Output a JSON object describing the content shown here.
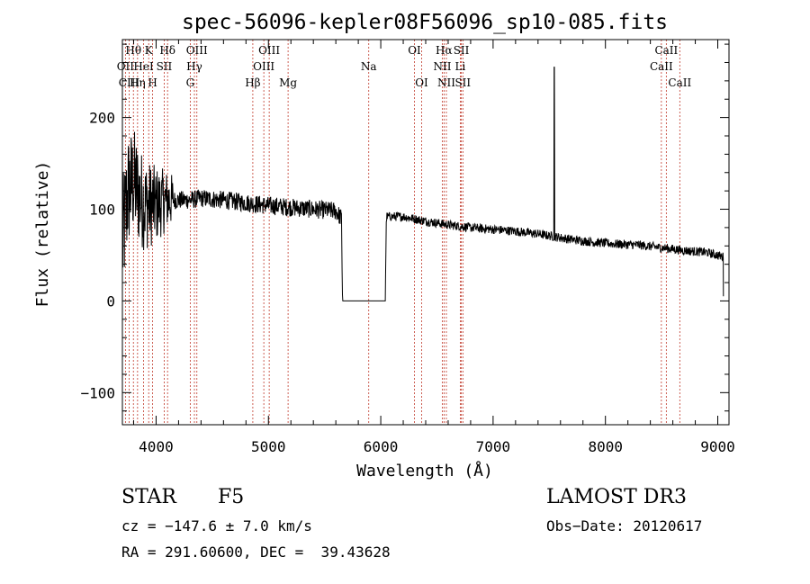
{
  "chart_data": {
    "type": "line",
    "title": "spec-56096-kepler08F56096_sp10-085.fits",
    "xlabel": "Wavelength (Å)",
    "ylabel": "Flux (relative)",
    "xlim": [
      3700,
      9100
    ],
    "ylim": [
      -135,
      285
    ],
    "x_ticks": [
      4000,
      5000,
      6000,
      7000,
      8000,
      9000
    ],
    "x_tick_labels": [
      "4000",
      "5000",
      "6000",
      "7000",
      "8000",
      "9000"
    ],
    "y_ticks": [
      -100,
      0,
      100,
      200
    ],
    "y_tick_labels": [
      "−100",
      "0",
      "100",
      "200"
    ],
    "grid": false,
    "line_color": "#000000",
    "marker_color": "#c0392b",
    "spectrum_anchors": [
      [
        3700,
        60
      ],
      [
        3750,
        120
      ],
      [
        3800,
        130
      ],
      [
        3850,
        115
      ],
      [
        3900,
        105
      ],
      [
        4000,
        105
      ],
      [
        4100,
        110
      ],
      [
        4200,
        110
      ],
      [
        4300,
        110
      ],
      [
        4400,
        112
      ],
      [
        4600,
        110
      ],
      [
        4800,
        107
      ],
      [
        5000,
        104
      ],
      [
        5200,
        102
      ],
      [
        5400,
        100
      ],
      [
        5600,
        98
      ],
      [
        5650,
        90
      ],
      [
        5660,
        0
      ],
      [
        6040,
        0
      ],
      [
        6050,
        92
      ],
      [
        6200,
        92
      ],
      [
        6400,
        87
      ],
      [
        6600,
        83
      ],
      [
        6800,
        80
      ],
      [
        7000,
        78
      ],
      [
        7200,
        76
      ],
      [
        7400,
        73
      ],
      [
        7550,
        70
      ],
      [
        7700,
        67
      ],
      [
        7900,
        64
      ],
      [
        8100,
        62
      ],
      [
        8300,
        61
      ],
      [
        8500,
        58
      ],
      [
        8700,
        55
      ],
      [
        8900,
        53
      ],
      [
        9050,
        48
      ]
    ],
    "spike_wavelength": 7545,
    "spike_flux": 255,
    "edge_drop_wavelength": 9050,
    "edge_drop_flux": 5,
    "noise": {
      "blue_end_limit": 4150,
      "blue_amplitude": 70,
      "mid_amplitude": 10,
      "red_amplitude": 5
    },
    "spectral_lines": [
      {
        "label": "Hθ",
        "wavelength": 3798,
        "row": 1
      },
      {
        "label": "OII",
        "wavelength": 3727,
        "row": 2
      },
      {
        "label": "CIII",
        "wavelength": 3760,
        "row": 3
      },
      {
        "label": "Hη",
        "wavelength": 3835,
        "row": 3
      },
      {
        "label": "HeI",
        "wavelength": 3889,
        "row": 2
      },
      {
        "label": "K",
        "wavelength": 3934,
        "row": 1
      },
      {
        "label": "H",
        "wavelength": 3969,
        "row": 3
      },
      {
        "label": "SII",
        "wavelength": 4072,
        "row": 2
      },
      {
        "label": "Hδ",
        "wavelength": 4102,
        "row": 1
      },
      {
        "label": "Hγ",
        "wavelength": 4341,
        "row": 2
      },
      {
        "label": "G",
        "wavelength": 4304,
        "row": 3
      },
      {
        "label": "OIII",
        "wavelength": 4363,
        "row": 1
      },
      {
        "label": "Hβ",
        "wavelength": 4861,
        "row": 3
      },
      {
        "label": "OIII",
        "wavelength": 4959,
        "row": 2
      },
      {
        "label": "OIII",
        "wavelength": 5007,
        "row": 1
      },
      {
        "label": "Mg",
        "wavelength": 5175,
        "row": 3
      },
      {
        "label": "Na",
        "wavelength": 5893,
        "row": 2
      },
      {
        "label": "OI",
        "wavelength": 6300,
        "row": 1
      },
      {
        "label": "OI",
        "wavelength": 6364,
        "row": 3
      },
      {
        "label": "NII",
        "wavelength": 6548,
        "row": 2
      },
      {
        "label": "Hα",
        "wavelength": 6563,
        "row": 1
      },
      {
        "label": "NII",
        "wavelength": 6584,
        "row": 3
      },
      {
        "label": "Li",
        "wavelength": 6708,
        "row": 2
      },
      {
        "label": "SII",
        "wavelength": 6717,
        "row": 1
      },
      {
        "label": "SII",
        "wavelength": 6731,
        "row": 3
      },
      {
        "label": "CaII",
        "wavelength": 8498,
        "row": 2
      },
      {
        "label": "CaII",
        "wavelength": 8542,
        "row": 1
      },
      {
        "label": "CaII",
        "wavelength": 8662,
        "row": 3
      }
    ]
  },
  "info": {
    "object_class": "STAR",
    "subclass": "F5",
    "survey": "LAMOST DR3",
    "redshift_line": "cz = −147.6 ± 7.0 km/s",
    "obs_date_line": "Obs−Date: 20120617",
    "coords_line": "RA = 291.60600, DEC =  39.43628"
  }
}
